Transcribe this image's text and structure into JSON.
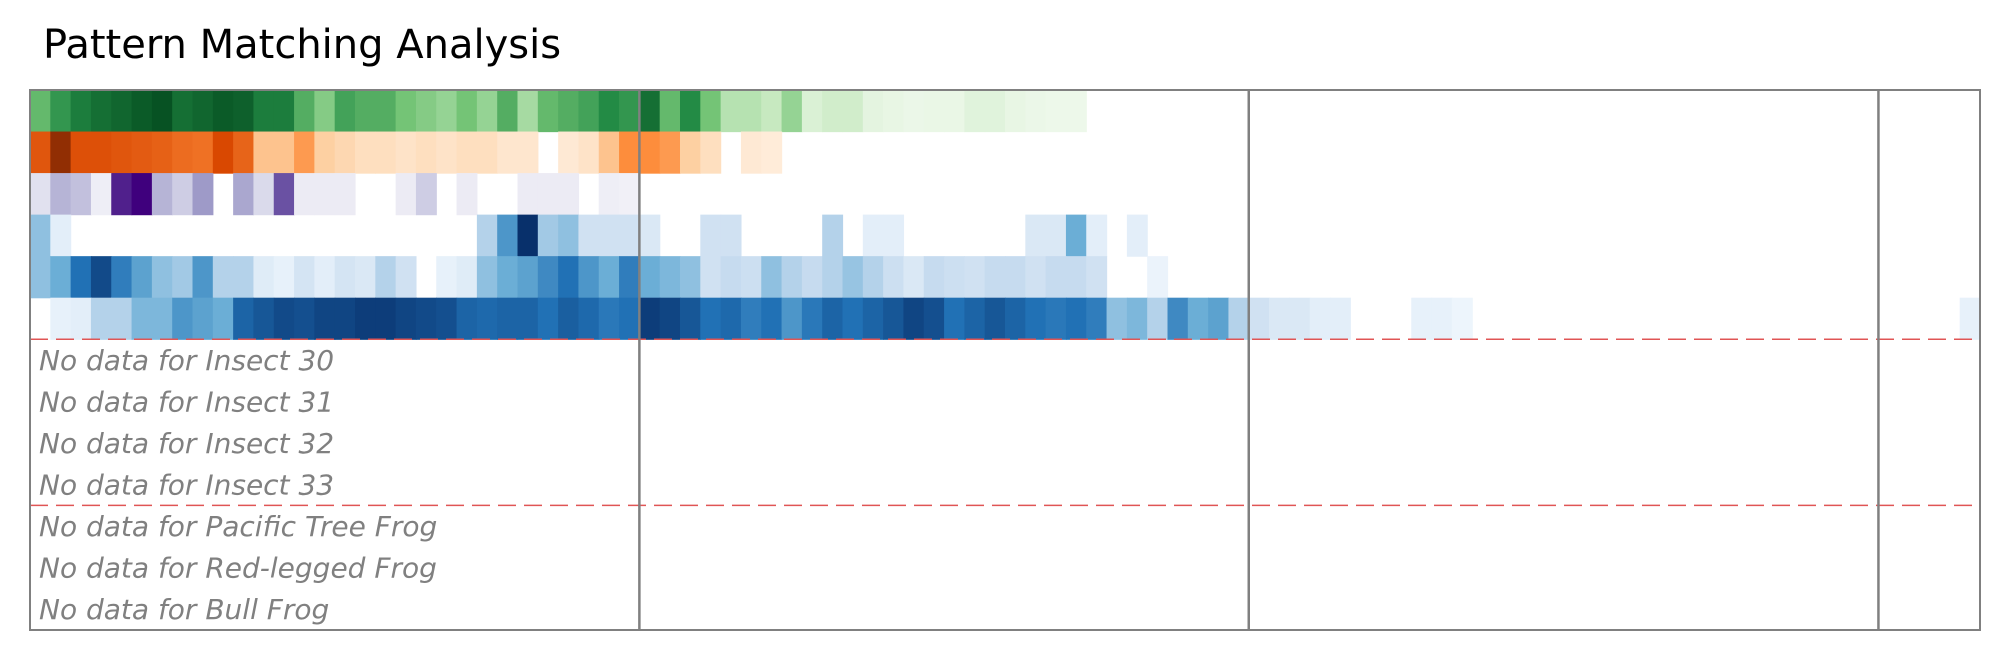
{
  "chart_data": {
    "type": "heatmap",
    "title": "Pattern Matching Analysis",
    "columns_per_row": 96,
    "value_range": [
      0,
      1
    ],
    "color_scales": {
      "green": [
        "#f7fcf5",
        "#c7e9c0",
        "#74c476",
        "#238b45",
        "#00441b"
      ],
      "orange": [
        "#fff5eb",
        "#fdd0a2",
        "#fd8d3c",
        "#d94801",
        "#7f2704"
      ],
      "purple": [
        "#fcfbfd",
        "#dadaeb",
        "#9e9ac8",
        "#6a51a3",
        "#3f007d"
      ],
      "blue": [
        "#f7fbff",
        "#c6dbef",
        "#6baed6",
        "#2171b5",
        "#08306b"
      ]
    },
    "rows": [
      {
        "colormap": "green",
        "values": [
          0.55,
          0.7,
          0.8,
          0.85,
          0.88,
          0.92,
          0.95,
          0.85,
          0.88,
          0.92,
          0.9,
          0.8,
          0.8,
          0.6,
          0.45,
          0.65,
          0.6,
          0.6,
          0.5,
          0.45,
          0.4,
          0.5,
          0.4,
          0.6,
          0.35,
          0.55,
          0.6,
          0.65,
          0.75,
          0.7,
          0.85,
          0.55,
          0.75,
          0.5,
          0.3,
          0.3,
          0.25,
          0.4,
          0.15,
          0.2,
          0.2,
          0.1,
          0.08,
          0.06,
          0.07,
          0.07,
          0.12,
          0.12,
          0.08,
          0.06,
          0.05,
          0.05,
          0,
          0,
          0,
          0,
          0,
          0,
          0,
          0,
          0,
          0,
          0,
          0,
          0,
          0,
          0,
          0,
          0,
          0,
          0,
          0,
          0,
          0,
          0,
          0,
          0,
          0,
          0,
          0,
          0,
          0,
          0,
          0,
          0,
          0,
          0,
          0,
          0,
          0,
          0,
          0,
          0,
          0,
          0,
          0
        ]
      },
      {
        "colormap": "orange",
        "values": [
          0.7,
          0.95,
          0.72,
          0.72,
          0.7,
          0.68,
          0.66,
          0.62,
          0.6,
          0.75,
          0.65,
          0.3,
          0.3,
          0.45,
          0.25,
          0.2,
          0.15,
          0.15,
          0.12,
          0.15,
          0.12,
          0.15,
          0.15,
          0.1,
          0.1,
          0,
          0.08,
          0.12,
          0.3,
          0.5,
          0.5,
          0.45,
          0.25,
          0.15,
          0,
          0.08,
          0.06,
          0,
          0,
          0,
          0,
          0,
          0,
          0,
          0,
          0,
          0,
          0,
          0,
          0,
          0,
          0,
          0,
          0,
          0,
          0,
          0,
          0,
          0,
          0,
          0,
          0,
          0,
          0,
          0,
          0,
          0,
          0,
          0,
          0,
          0,
          0,
          0,
          0,
          0,
          0,
          0,
          0,
          0,
          0,
          0,
          0,
          0,
          0,
          0,
          0,
          0,
          0,
          0,
          0,
          0,
          0,
          0,
          0,
          0,
          0
        ]
      },
      {
        "colormap": "purple",
        "values": [
          0.2,
          0.4,
          0.35,
          0.1,
          0.9,
          1,
          0.4,
          0.3,
          0.5,
          0,
          0.45,
          0.25,
          0.75,
          0.12,
          0.12,
          0.12,
          0,
          0,
          0.12,
          0.3,
          0,
          0.12,
          0,
          0,
          0.12,
          0.12,
          0.12,
          0,
          0.1,
          0.08,
          0,
          0,
          0,
          0,
          0,
          0,
          0,
          0,
          0,
          0,
          0,
          0,
          0,
          0,
          0,
          0,
          0,
          0,
          0,
          0,
          0,
          0,
          0,
          0,
          0,
          0,
          0,
          0,
          0,
          0,
          0,
          0,
          0,
          0,
          0,
          0,
          0,
          0,
          0,
          0,
          0,
          0,
          0,
          0,
          0,
          0,
          0,
          0,
          0,
          0,
          0,
          0,
          0,
          0,
          0,
          0,
          0,
          0,
          0,
          0,
          0,
          0,
          0,
          0,
          0,
          0
        ]
      },
      {
        "colormap": "blue",
        "values": [
          0.4,
          0.1,
          0,
          0,
          0,
          0,
          0,
          0,
          0,
          0,
          0,
          0,
          0,
          0,
          0,
          0,
          0,
          0,
          0,
          0,
          0,
          0,
          0.3,
          0.6,
          1,
          0.35,
          0.4,
          0.2,
          0.2,
          0.2,
          0.15,
          0,
          0,
          0.2,
          0.2,
          0,
          0,
          0,
          0,
          0.3,
          0,
          0.1,
          0.1,
          0,
          0,
          0,
          0,
          0,
          0,
          0.15,
          0.15,
          0.5,
          0.1,
          0,
          0.1,
          0,
          0,
          0,
          0,
          0,
          0,
          0,
          0,
          0,
          0,
          0,
          0,
          0,
          0,
          0,
          0,
          0,
          0,
          0,
          0,
          0,
          0,
          0,
          0,
          0,
          0,
          0,
          0,
          0,
          0,
          0,
          0,
          0,
          0,
          0,
          0,
          0,
          0,
          0,
          0,
          0
        ]
      },
      {
        "colormap": "blue",
        "values": [
          0.4,
          0.5,
          0.75,
          0.9,
          0.7,
          0.55,
          0.4,
          0.35,
          0.6,
          0.3,
          0.3,
          0.12,
          0.08,
          0.18,
          0.1,
          0.18,
          0.15,
          0.3,
          0.2,
          0,
          0.08,
          0.12,
          0.4,
          0.5,
          0.55,
          0.65,
          0.75,
          0.6,
          0.5,
          0.7,
          0.5,
          0.45,
          0.4,
          0.2,
          0.25,
          0.22,
          0.4,
          0.3,
          0.25,
          0.3,
          0.38,
          0.3,
          0.22,
          0.15,
          0.25,
          0.22,
          0.2,
          0.25,
          0.25,
          0.2,
          0.25,
          0.25,
          0.2,
          0,
          0,
          0.06,
          0,
          0,
          0,
          0,
          0,
          0,
          0,
          0,
          0,
          0,
          0,
          0,
          0,
          0,
          0,
          0,
          0,
          0,
          0,
          0,
          0,
          0,
          0,
          0,
          0,
          0,
          0,
          0,
          0,
          0,
          0,
          0,
          0,
          0,
          0,
          0,
          0,
          0,
          0,
          0
        ]
      },
      {
        "colormap": "blue",
        "values": [
          0,
          0.08,
          0.1,
          0.3,
          0.3,
          0.45,
          0.45,
          0.6,
          0.55,
          0.5,
          0.8,
          0.85,
          0.9,
          0.88,
          0.92,
          0.92,
          0.95,
          0.95,
          0.92,
          0.9,
          0.88,
          0.8,
          0.78,
          0.8,
          0.8,
          0.75,
          0.82,
          0.78,
          0.72,
          0.75,
          0.95,
          0.92,
          0.85,
          0.75,
          0.78,
          0.7,
          0.75,
          0.6,
          0.72,
          0.8,
          0.75,
          0.8,
          0.85,
          0.92,
          0.88,
          0.75,
          0.8,
          0.85,
          0.8,
          0.75,
          0.72,
          0.75,
          0.7,
          0.4,
          0.45,
          0.3,
          0.65,
          0.5,
          0.55,
          0.3,
          0.2,
          0.15,
          0.15,
          0.1,
          0.1,
          0,
          0,
          0,
          0.08,
          0.08,
          0.05,
          0,
          0,
          0,
          0,
          0,
          0,
          0,
          0,
          0,
          0,
          0,
          0,
          0,
          0,
          0,
          0,
          0,
          0,
          0,
          0,
          0,
          0,
          0,
          0,
          0.08
        ]
      }
    ],
    "empty_rows": [
      "No data for Insect 30",
      "No data for Insect 31",
      "No data for Insect 32",
      "No data for Insect 33",
      "No data for Pacific Tree Frog",
      "No data for Red-legged Frog",
      "No data for Bull Frog"
    ],
    "group_boundaries_after_row": [
      6,
      10
    ],
    "vertical_dividers_after_column": [
      30,
      60,
      91
    ],
    "colors": {
      "frame": "#808080",
      "group_separator": "#e05555",
      "no_data_text": "#808080"
    }
  }
}
